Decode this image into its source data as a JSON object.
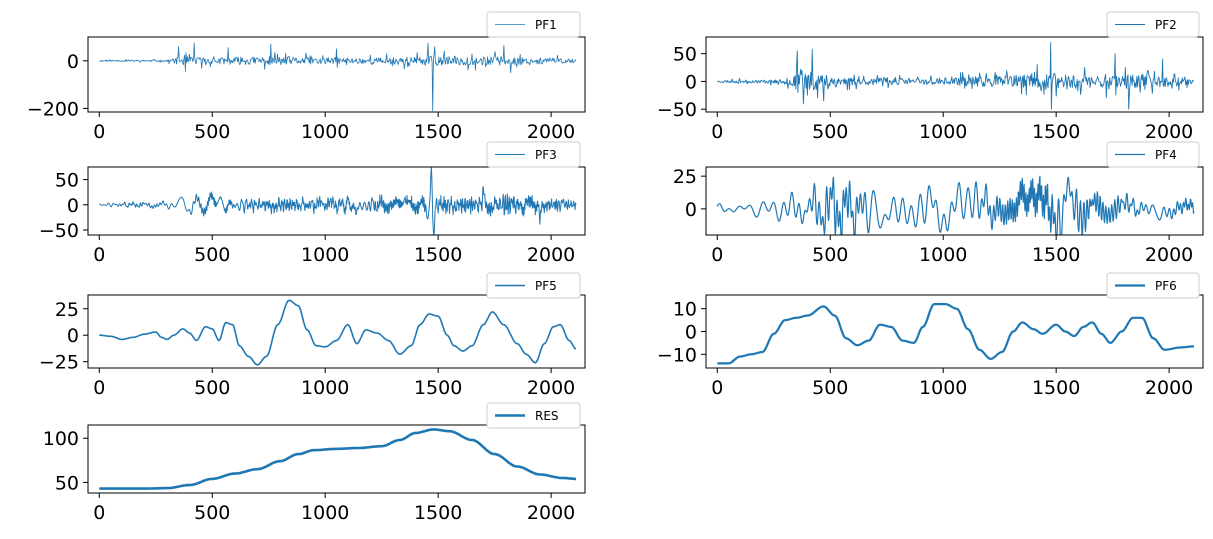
{
  "chart_data": [
    {
      "type": "line",
      "title": "",
      "xlabel": "",
      "ylabel": "",
      "xlim": [
        -50,
        2150
      ],
      "ylim": [
        -215,
        100
      ],
      "xticks": [
        0,
        500,
        1000,
        1500,
        2000
      ],
      "yticks": [
        0,
        -200
      ],
      "ytick_labels": [
        "0",
        "−200"
      ],
      "series": [
        {
          "name": "PF1",
          "color": "#1f77b4",
          "line_width": 0.8,
          "signal": {
            "kind": "noise",
            "length": 2110,
            "baseline": 0,
            "envelope": [
              [
                0,
                5
              ],
              [
                300,
                8
              ],
              [
                360,
                40
              ],
              [
                500,
                30
              ],
              [
                750,
                40
              ],
              [
                1000,
                30
              ],
              [
                1200,
                28
              ],
              [
                1500,
                45
              ],
              [
                1800,
                40
              ],
              [
                2110,
                20
              ]
            ],
            "spikes": [
              [
                350,
                60
              ],
              [
                380,
                -45
              ],
              [
                420,
                75
              ],
              [
                570,
                55
              ],
              [
                760,
                70
              ],
              [
                1050,
                50
              ],
              [
                1455,
                75
              ],
              [
                1475,
                -210
              ],
              [
                1485,
                60
              ],
              [
                1790,
                65
              ],
              [
                1820,
                -50
              ]
            ],
            "seed": 11
          }
        }
      ]
    },
    {
      "type": "line",
      "title": "",
      "xlabel": "",
      "ylabel": "",
      "xlim": [
        -50,
        2150
      ],
      "ylim": [
        -55,
        80
      ],
      "xticks": [
        0,
        500,
        1000,
        1500,
        2000
      ],
      "yticks": [
        50,
        0,
        -50
      ],
      "ytick_labels": [
        "50",
        "0",
        "−50"
      ],
      "series": [
        {
          "name": "PF2",
          "color": "#1f77b4",
          "line_width": 0.9,
          "signal": {
            "kind": "noise",
            "length": 2110,
            "baseline": 0,
            "envelope": [
              [
                0,
                4
              ],
              [
                300,
                8
              ],
              [
                340,
                30
              ],
              [
                450,
                35
              ],
              [
                600,
                15
              ],
              [
                900,
                12
              ],
              [
                1200,
                20
              ],
              [
                1500,
                35
              ],
              [
                1800,
                30
              ],
              [
                2000,
                20
              ],
              [
                2110,
                10
              ]
            ],
            "spikes": [
              [
                355,
                55
              ],
              [
                420,
                58
              ],
              [
                380,
                -40
              ],
              [
                470,
                -35
              ],
              [
                1475,
                70
              ],
              [
                1480,
                -50
              ],
              [
                1760,
                50
              ],
              [
                1820,
                -50
              ],
              [
                1970,
                40
              ]
            ],
            "seed": 23
          }
        }
      ]
    },
    {
      "type": "line",
      "title": "",
      "xlabel": "",
      "ylabel": "",
      "xlim": [
        -50,
        2150
      ],
      "ylim": [
        -60,
        75
      ],
      "xticks": [
        0,
        500,
        1000,
        1500,
        2000
      ],
      "yticks": [
        50,
        0,
        -50
      ],
      "ytick_labels": [
        "50",
        "0",
        "−50"
      ],
      "series": [
        {
          "name": "PF3",
          "color": "#1f77b4",
          "line_width": 1.0,
          "signal": {
            "kind": "osc",
            "length": 2110,
            "baseline": 0,
            "periods": [
              25,
              40,
              17
            ],
            "envelope": [
              [
                0,
                4
              ],
              [
                300,
                6
              ],
              [
                350,
                14
              ],
              [
                480,
                20
              ],
              [
                600,
                12
              ],
              [
                900,
                14
              ],
              [
                1100,
                15
              ],
              [
                1400,
                16
              ],
              [
                1600,
                14
              ],
              [
                1800,
                18
              ],
              [
                2110,
                10
              ]
            ],
            "spikes": [
              [
                1455,
                -30
              ],
              [
                1470,
                70
              ],
              [
                1480,
                -60
              ],
              [
                1700,
                25
              ],
              [
                1950,
                -25
              ]
            ],
            "seed": 5
          }
        }
      ]
    },
    {
      "type": "line",
      "title": "",
      "xlabel": "",
      "ylabel": "",
      "xlim": [
        -50,
        2150
      ],
      "ylim": [
        -20,
        32
      ],
      "xticks": [
        0,
        500,
        1000,
        1500,
        2000
      ],
      "yticks": [
        25,
        0
      ],
      "ytick_labels": [
        "25",
        "0"
      ],
      "series": [
        {
          "name": "PF4",
          "color": "#1f77b4",
          "line_width": 1.2,
          "signal": {
            "kind": "osc",
            "length": 2110,
            "baseline": 0,
            "periods": [
              55,
              80,
              37
            ],
            "envelope": [
              [
                0,
                3
              ],
              [
                250,
                6
              ],
              [
                400,
                12
              ],
              [
                520,
                24
              ],
              [
                700,
                14
              ],
              [
                900,
                15
              ],
              [
                1200,
                15
              ],
              [
                1400,
                18
              ],
              [
                1500,
                22
              ],
              [
                1700,
                10
              ],
              [
                2110,
                6
              ]
            ],
            "spikes": [],
            "seed": 9
          }
        }
      ]
    },
    {
      "type": "line",
      "title": "",
      "xlabel": "",
      "ylabel": "",
      "xlim": [
        -50,
        2150
      ],
      "ylim": [
        -31,
        38
      ],
      "xticks": [
        0,
        500,
        1000,
        1500,
        2000
      ],
      "yticks": [
        25,
        0,
        -25
      ],
      "ytick_labels": [
        "25",
        "0",
        "−25"
      ],
      "series": [
        {
          "name": "PF5",
          "color": "#1f77b4",
          "line_width": 1.6,
          "signal": {
            "kind": "curve",
            "length": 2110,
            "points": [
              [
                0,
                0
              ],
              [
                50,
                -1
              ],
              [
                100,
                -4
              ],
              [
                150,
                -2
              ],
              [
                200,
                1
              ],
              [
                250,
                3
              ],
              [
                275,
                -2
              ],
              [
                300,
                -4
              ],
              [
                330,
                0
              ],
              [
                370,
                6
              ],
              [
                400,
                2
              ],
              [
                430,
                -5
              ],
              [
                470,
                8
              ],
              [
                500,
                6
              ],
              [
                530,
                -5
              ],
              [
                560,
                12
              ],
              [
                590,
                10
              ],
              [
                620,
                -10
              ],
              [
                660,
                -20
              ],
              [
                700,
                -28
              ],
              [
                740,
                -20
              ],
              [
                790,
                10
              ],
              [
                840,
                33
              ],
              [
                880,
                28
              ],
              [
                920,
                5
              ],
              [
                960,
                -10
              ],
              [
                1000,
                -11
              ],
              [
                1050,
                -5
              ],
              [
                1100,
                10
              ],
              [
                1140,
                -8
              ],
              [
                1180,
                5
              ],
              [
                1230,
                2
              ],
              [
                1280,
                -5
              ],
              [
                1330,
                -18
              ],
              [
                1380,
                -10
              ],
              [
                1420,
                10
              ],
              [
                1460,
                20
              ],
              [
                1500,
                18
              ],
              [
                1540,
                0
              ],
              [
                1570,
                -10
              ],
              [
                1610,
                -15
              ],
              [
                1650,
                -10
              ],
              [
                1700,
                10
              ],
              [
                1740,
                22
              ],
              [
                1790,
                10
              ],
              [
                1850,
                -8
              ],
              [
                1890,
                -18
              ],
              [
                1930,
                -26
              ],
              [
                1970,
                -8
              ],
              [
                2010,
                8
              ],
              [
                2040,
                10
              ],
              [
                2080,
                -5
              ],
              [
                2110,
                -13
              ]
            ]
          }
        }
      ]
    },
    {
      "type": "line",
      "title": "",
      "xlabel": "",
      "ylabel": "",
      "xlim": [
        -50,
        2150
      ],
      "ylim": [
        -16,
        16
      ],
      "xticks": [
        0,
        500,
        1000,
        1500,
        2000
      ],
      "yticks": [
        10,
        0,
        -10
      ],
      "ytick_labels": [
        "10",
        "0",
        "−10"
      ],
      "series": [
        {
          "name": "PF6",
          "color": "#1f77b4",
          "line_width": 2.2,
          "signal": {
            "kind": "curve",
            "length": 2110,
            "points": [
              [
                0,
                -14
              ],
              [
                50,
                -14
              ],
              [
                100,
                -11
              ],
              [
                150,
                -10
              ],
              [
                200,
                -9
              ],
              [
                250,
                -1
              ],
              [
                300,
                5
              ],
              [
                350,
                6
              ],
              [
                400,
                7
              ],
              [
                470,
                11
              ],
              [
                520,
                7
              ],
              [
                570,
                -3
              ],
              [
                620,
                -6
              ],
              [
                670,
                -4
              ],
              [
                720,
                3
              ],
              [
                770,
                2
              ],
              [
                820,
                -4
              ],
              [
                870,
                -5
              ],
              [
                910,
                2
              ],
              [
                960,
                12
              ],
              [
                1010,
                12
              ],
              [
                1060,
                10
              ],
              [
                1110,
                1
              ],
              [
                1160,
                -8
              ],
              [
                1210,
                -12
              ],
              [
                1260,
                -9
              ],
              [
                1310,
                0
              ],
              [
                1350,
                4
              ],
              [
                1400,
                1
              ],
              [
                1440,
                -1
              ],
              [
                1500,
                3
              ],
              [
                1540,
                0
              ],
              [
                1580,
                -2
              ],
              [
                1620,
                2
              ],
              [
                1660,
                4
              ],
              [
                1700,
                -1
              ],
              [
                1740,
                -5
              ],
              [
                1790,
                0
              ],
              [
                1840,
                6
              ],
              [
                1880,
                6
              ],
              [
                1930,
                -3
              ],
              [
                1980,
                -8
              ],
              [
                2050,
                -7
              ],
              [
                2110,
                -6.5
              ]
            ]
          }
        }
      ]
    },
    {
      "type": "line",
      "title": "",
      "xlabel": "",
      "ylabel": "",
      "xlim": [
        -50,
        2150
      ],
      "ylim": [
        38,
        115
      ],
      "xticks": [
        0,
        500,
        1000,
        1500,
        2000
      ],
      "yticks": [
        100,
        50
      ],
      "ytick_labels": [
        "100",
        "50"
      ],
      "series": [
        {
          "name": "RES",
          "color": "#1f77b4",
          "line_width": 2.6,
          "signal": {
            "kind": "curve",
            "length": 2110,
            "points": [
              [
                0,
                43
              ],
              [
                100,
                43
              ],
              [
                200,
                43
              ],
              [
                300,
                43.5
              ],
              [
                400,
                47
              ],
              [
                500,
                54
              ],
              [
                600,
                60
              ],
              [
                700,
                65
              ],
              [
                800,
                74
              ],
              [
                880,
                82
              ],
              [
                950,
                86.5
              ],
              [
                1050,
                88
              ],
              [
                1150,
                89
              ],
              [
                1250,
                91
              ],
              [
                1330,
                98
              ],
              [
                1400,
                106
              ],
              [
                1480,
                110
              ],
              [
                1550,
                108
              ],
              [
                1650,
                98
              ],
              [
                1750,
                82
              ],
              [
                1850,
                68
              ],
              [
                1950,
                59
              ],
              [
                2050,
                55
              ],
              [
                2110,
                54
              ]
            ]
          }
        }
      ]
    }
  ]
}
